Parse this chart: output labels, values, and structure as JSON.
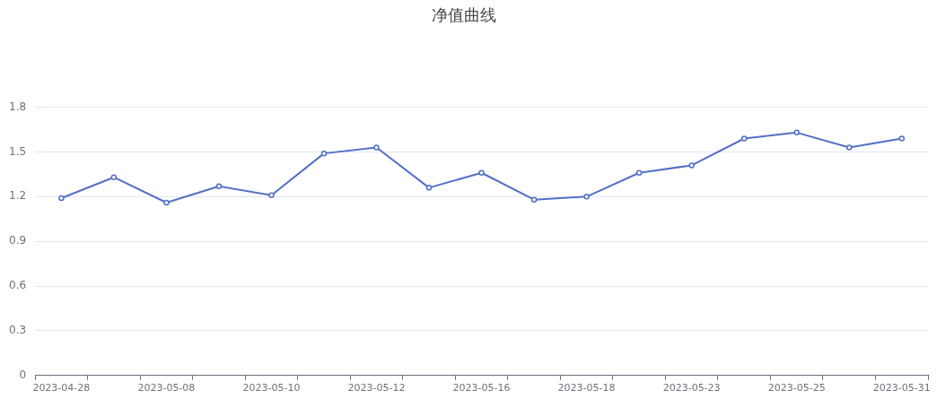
{
  "chart_data": {
    "type": "line",
    "title": "净值曲线",
    "categories": [
      "2023-04-28",
      null,
      "2023-05-08",
      null,
      "2023-05-10",
      null,
      "2023-05-12",
      null,
      "2023-05-16",
      null,
      "2023-05-18",
      null,
      "2023-05-23",
      null,
      "2023-05-25",
      null,
      "2023-05-31"
    ],
    "series": [
      {
        "color": "#5470c6",
        "values": [
          1.19,
          1.33,
          1.16,
          1.27,
          1.21,
          1.49,
          1.53,
          1.26,
          1.36,
          1.18,
          1.2,
          1.36,
          1.41,
          1.59,
          1.63,
          1.53,
          1.59
        ]
      }
    ],
    "ylim": [
      0,
      1.8
    ],
    "yticks": [
      0,
      0.3,
      0.6,
      0.9,
      1.2,
      1.5,
      1.8
    ],
    "grid": "y",
    "marker": "circle",
    "line_style": "solid"
  }
}
